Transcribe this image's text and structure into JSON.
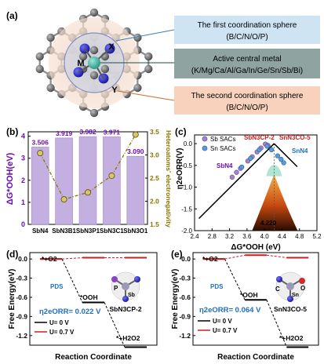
{
  "colors": {
    "bar": "#c4b0e0",
    "bar_edge": "#9f84c7",
    "purple": "#6a0dad",
    "olive": "#8a7400",
    "blue": "#1f6fbf",
    "red": "#cc1f1f",
    "box_blue": "#cfe4f3",
    "box_gray": "#8fa3a0",
    "box_peach": "#f9d2bd"
  },
  "panel_a": {
    "tag": "(a)",
    "atom_x": "X",
    "atom_m": "M",
    "atom_y": "Y",
    "box1_line1": "The first coordination sphere",
    "box1_line2": "(B/C/N/O/P)",
    "box2_line1": "Active central metal",
    "box2_line2": "(K/Mg/Ca/Al/Ga/In/Ge/Sn/Sb/Bi)",
    "box3_line1": "The second coordination sphere",
    "box3_line2": "(B/C/N/O/P)"
  },
  "panel_b": {
    "tag": "(b)",
    "ylabel_left": "ΔG*OOH(eV)",
    "ylabel_right": "Heteroatoms' electronegativity"
  },
  "panel_c": {
    "tag": "(c)",
    "ylabel": "η2eORR(V)",
    "xlabel": "ΔG*OOH (eV)",
    "legend_sb": "Sb SACs",
    "legend_sn": "Sn SACs",
    "ann_sbn3cp2": "SbN3CP-2",
    "ann_snn3co5": "SnN3CO-5",
    "ann_snn4": "SnN4",
    "ann_sbn4": "SbN4",
    "peak_label": "4.220"
  },
  "panel_d": {
    "tag": "(d)",
    "ylabel": "Free Energy(eV)",
    "xlabel": "Reaction Coordinate",
    "o2": "*+O2",
    "ooh": "*OOH",
    "h2o2": "*+H2O2",
    "pds": "PDS",
    "eta": "η2eORR= 0.022 V",
    "legend_0": "U= 0 V",
    "legend_07": "U= 0.7 V",
    "struct": "SbN3CP-2",
    "atom_p": "P",
    "atom_sb": "Sb"
  },
  "panel_e": {
    "tag": "(e)",
    "ylabel": "Free Energy(eV)",
    "xlabel": "Reaction Coordinate",
    "o2": "*+O2",
    "ooh": "*OOH",
    "h2o2": "*+H2O2",
    "pds": "PDS",
    "eta": "η2eORR= 0.064 V",
    "legend_0": "U= 0 V",
    "legend_07": "U= 0.7 V",
    "struct": "SnN3CO-5",
    "atom_c": "C",
    "atom_o": "O",
    "atom_sn": "Sn"
  },
  "chart_data": [
    {
      "type": "bar",
      "panel": "b",
      "categories": [
        "SbN4",
        "SbN3B1",
        "SbN3P1",
        "SbN3C1",
        "SbN3O1"
      ],
      "series": [
        {
          "values": [
            3.506,
            3.919,
            3.982,
            3.971,
            3.09
          ],
          "data_labels": [
            "3.506",
            "3.919",
            "3.982",
            "3.971",
            "3.090"
          ]
        },
        {
          "values": [
            3.04,
            2.04,
            2.19,
            2.55,
            3.44
          ],
          "axis": "right",
          "style": "line-markers"
        }
      ],
      "ylabel": "ΔG*OOH(eV)",
      "y2label": "Heteroatoms' electronegativity",
      "ylim": [
        0,
        4.2
      ],
      "yticks": [
        0,
        1,
        2,
        3,
        4
      ],
      "y2lim": [
        1.5,
        3.5
      ],
      "y2ticks": [
        1.5,
        2.0,
        2.5,
        3.0,
        3.5
      ],
      "grid": false
    },
    {
      "type": "scatter",
      "panel": "c",
      "series": [
        {
          "name": "Sb SACs",
          "x": [
            3.26,
            3.36,
            3.45,
            3.62,
            3.72,
            3.83,
            3.92,
            4.02,
            4.08
          ],
          "y": [
            -0.77,
            -0.66,
            -0.57,
            -0.4,
            -0.3,
            -0.19,
            -0.1,
            -0.01,
            -0.04
          ]
        },
        {
          "name": "Sn SACs",
          "x": [
            3.48,
            3.68,
            3.88,
            4.06,
            4.16,
            4.3,
            4.38,
            4.44
          ],
          "y": [
            -0.54,
            -0.34,
            -0.14,
            -0.06,
            -0.14,
            -0.28,
            -0.36,
            -0.44
          ]
        }
      ],
      "annotations": [
        "SbN3CP-2",
        "SnN3CO-5",
        "SnN4",
        "SbN4",
        "4.220"
      ],
      "xlabel": "ΔG*OOH (eV)",
      "ylabel": "η2eORR(V)",
      "xlim": [
        2.4,
        5.2
      ],
      "ylim": [
        -2.0,
        0.2
      ],
      "xticks": [
        2.4,
        2.8,
        3.2,
        3.6,
        4.0,
        4.4,
        4.8,
        5.2
      ],
      "yticks": [
        0.0,
        -0.5,
        -1.0,
        -1.5,
        -2.0
      ],
      "volcano_peak": {
        "x": 4.22,
        "y": 0
      },
      "legend": "top-left"
    },
    {
      "type": "line",
      "panel": "d",
      "x": [
        "*+O2",
        "*OOH",
        "*+H2O2"
      ],
      "series": [
        {
          "name": "U= 0 V",
          "values": [
            0.0,
            -0.68,
            -1.38
          ]
        },
        {
          "name": "U= 0.7 V",
          "values": [
            0.0,
            0.02,
            0.02
          ]
        }
      ],
      "xlabel": "Reaction Coordinate",
      "ylabel": "Free Energy(eV)",
      "ylim": [
        -1.35,
        0.1
      ],
      "yticks": [
        0.0,
        -0.3,
        -0.6,
        -0.9,
        -1.2
      ]
    },
    {
      "type": "line",
      "panel": "e",
      "x": [
        "*+O2",
        "*OOH",
        "*+H2O2"
      ],
      "series": [
        {
          "name": "U= 0 V",
          "values": [
            0.0,
            -0.64,
            -1.38
          ]
        },
        {
          "name": "U= 0.7 V",
          "values": [
            0.0,
            0.06,
            0.02
          ]
        }
      ],
      "xlabel": "Reaction Coordinate",
      "ylabel": "Free Energy(eV)",
      "ylim": [
        -1.35,
        0.1
      ],
      "yticks": [
        0.0,
        -0.3,
        -0.6,
        -0.9,
        -1.2
      ]
    }
  ]
}
